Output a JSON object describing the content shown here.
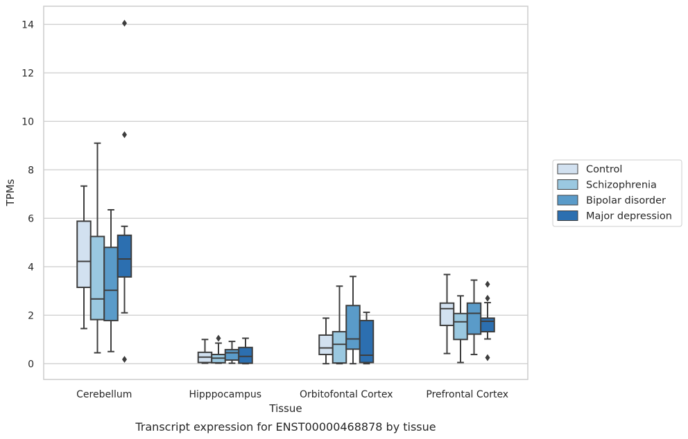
{
  "chart_data": {
    "type": "box",
    "caption": "Transcript expression for ENST00000468878 by tissue",
    "xlabel": "Tissue",
    "ylabel": "TPMs",
    "ylim": [
      -0.65,
      14.75
    ],
    "yticks": [
      0,
      2,
      4,
      6,
      8,
      10,
      12,
      14
    ],
    "grid": "horizontal",
    "legend_position": "right",
    "categories": [
      "Cerebellum",
      "Hipppocampus",
      "Orbitofontal Cortex",
      "Prefrontal Cortex"
    ],
    "series": [
      {
        "name": "Control",
        "color": "#d2e1f0",
        "boxes": [
          {
            "whisker_low": 1.45,
            "q1": 3.15,
            "median": 4.22,
            "q3": 5.88,
            "whisker_high": 7.33,
            "outliers": []
          },
          {
            "whisker_low": 0.02,
            "q1": 0.05,
            "median": 0.27,
            "q3": 0.47,
            "whisker_high": 1.0,
            "outliers": []
          },
          {
            "whisker_low": 0.0,
            "q1": 0.38,
            "median": 0.65,
            "q3": 1.18,
            "whisker_high": 1.88,
            "outliers": []
          },
          {
            "whisker_low": 0.42,
            "q1": 1.58,
            "median": 2.27,
            "q3": 2.5,
            "whisker_high": 3.68,
            "outliers": []
          }
        ]
      },
      {
        "name": "Schizophrenia",
        "color": "#9ac8e0",
        "boxes": [
          {
            "whisker_low": 0.45,
            "q1": 1.82,
            "median": 2.67,
            "q3": 5.25,
            "whisker_high": 9.1,
            "outliers": []
          },
          {
            "whisker_low": 0.02,
            "q1": 0.04,
            "median": 0.23,
            "q3": 0.38,
            "whisker_high": 0.85,
            "outliers": [
              1.05
            ]
          },
          {
            "whisker_low": 0.0,
            "q1": 0.03,
            "median": 0.8,
            "q3": 1.32,
            "whisker_high": 3.2,
            "outliers": []
          },
          {
            "whisker_low": 0.05,
            "q1": 1.0,
            "median": 1.73,
            "q3": 2.07,
            "whisker_high": 2.8,
            "outliers": []
          }
        ]
      },
      {
        "name": "Bipolar disorder",
        "color": "#5a9bc9",
        "boxes": [
          {
            "whisker_low": 0.5,
            "q1": 1.78,
            "median": 3.03,
            "q3": 4.8,
            "whisker_high": 6.35,
            "outliers": []
          },
          {
            "whisker_low": 0.02,
            "q1": 0.15,
            "median": 0.45,
            "q3": 0.58,
            "whisker_high": 0.92,
            "outliers": []
          },
          {
            "whisker_low": 0.0,
            "q1": 0.6,
            "median": 1.02,
            "q3": 2.4,
            "whisker_high": 3.6,
            "outliers": []
          },
          {
            "whisker_low": 0.38,
            "q1": 1.22,
            "median": 2.08,
            "q3": 2.5,
            "whisker_high": 3.45,
            "outliers": []
          }
        ]
      },
      {
        "name": "Major depression",
        "color": "#2c6fb0",
        "boxes": [
          {
            "whisker_low": 2.1,
            "q1": 3.58,
            "median": 4.32,
            "q3": 5.3,
            "whisker_high": 5.67,
            "outliers": [
              14.05,
              9.45,
              0.18
            ]
          },
          {
            "whisker_low": 0.0,
            "q1": 0.02,
            "median": 0.3,
            "q3": 0.67,
            "whisker_high": 1.05,
            "outliers": []
          },
          {
            "whisker_low": 0.0,
            "q1": 0.05,
            "median": 0.35,
            "q3": 1.78,
            "whisker_high": 2.12,
            "outliers": []
          },
          {
            "whisker_low": 1.02,
            "q1": 1.32,
            "median": 1.75,
            "q3": 1.88,
            "whisker_high": 2.52,
            "outliers": [
              3.28,
              2.7,
              0.25
            ]
          }
        ]
      }
    ]
  }
}
